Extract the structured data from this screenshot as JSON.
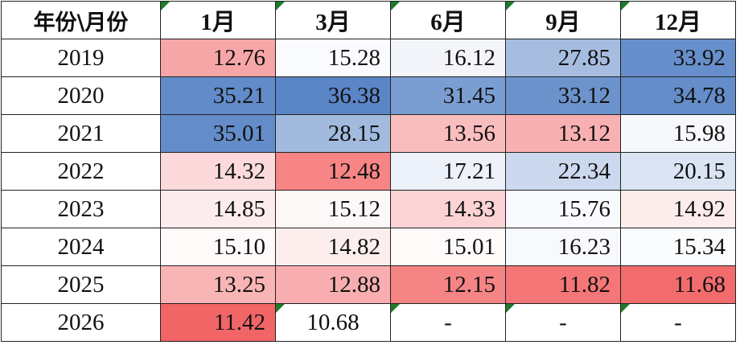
{
  "table": {
    "corner_label": "年份\\月份",
    "columns": [
      "1月",
      "3月",
      "6月",
      "9月",
      "12月"
    ],
    "rows": [
      {
        "year": "2019",
        "cells": [
          {
            "text": "12.76",
            "bg": "#f7a6a8"
          },
          {
            "text": "15.28",
            "bg": "#fafbfe"
          },
          {
            "text": "16.12",
            "bg": "#f3f5fb"
          },
          {
            "text": "27.85",
            "bg": "#a6bde0"
          },
          {
            "text": "33.92",
            "bg": "#678fcb"
          }
        ]
      },
      {
        "year": "2020",
        "cells": [
          {
            "text": "35.21",
            "bg": "#628bc9"
          },
          {
            "text": "36.38",
            "bg": "#5a85c6"
          },
          {
            "text": "31.45",
            "bg": "#7b9ed2"
          },
          {
            "text": "33.12",
            "bg": "#6d93cd"
          },
          {
            "text": "34.78",
            "bg": "#648dca"
          }
        ]
      },
      {
        "year": "2021",
        "cells": [
          {
            "text": "35.01",
            "bg": "#638cc9"
          },
          {
            "text": "28.15",
            "bg": "#a2bade"
          },
          {
            "text": "13.56",
            "bg": "#fabdbe"
          },
          {
            "text": "13.12",
            "bg": "#f9b0b2"
          },
          {
            "text": "15.98",
            "bg": "#f6f8fc"
          }
        ]
      },
      {
        "year": "2022",
        "cells": [
          {
            "text": "14.32",
            "bg": "#fcdadb"
          },
          {
            "text": "12.48",
            "bg": "#f78585"
          },
          {
            "text": "17.21",
            "bg": "#edf1f9"
          },
          {
            "text": "22.34",
            "bg": "#cbd8ee"
          },
          {
            "text": "20.15",
            "bg": "#dae4f3"
          }
        ]
      },
      {
        "year": "2023",
        "cells": [
          {
            "text": "14.85",
            "bg": "#fdeced"
          },
          {
            "text": "15.12",
            "bg": "#fdf8f8"
          },
          {
            "text": "14.33",
            "bg": "#fbd3d4"
          },
          {
            "text": "15.76",
            "bg": "#f9fafd"
          },
          {
            "text": "14.92",
            "bg": "#fdecec"
          }
        ]
      },
      {
        "year": "2024",
        "cells": [
          {
            "text": "15.10",
            "bg": "#fefafa"
          },
          {
            "text": "14.82",
            "bg": "#fdeeee"
          },
          {
            "text": "15.01",
            "bg": "#fefafa"
          },
          {
            "text": "16.23",
            "bg": "#f8f9fd"
          },
          {
            "text": "15.34",
            "bg": "#fbfcfe"
          }
        ]
      },
      {
        "year": "2025",
        "cells": [
          {
            "text": "13.25",
            "bg": "#f9b5b6"
          },
          {
            "text": "12.88",
            "bg": "#f8aeb0"
          },
          {
            "text": "12.15",
            "bg": "#f58485"
          },
          {
            "text": "11.82",
            "bg": "#f47677"
          },
          {
            "text": "11.68",
            "bg": "#f36c6d"
          }
        ]
      },
      {
        "year": "2026",
        "cells": [
          {
            "text": "11.42",
            "bg": "#f26566"
          },
          {
            "text": "10.68",
            "bg": "#ffffff"
          },
          {
            "text": "-",
            "bg": "#ffffff"
          },
          {
            "text": "-",
            "bg": "#ffffff"
          },
          {
            "text": "-",
            "bg": "#ffffff"
          }
        ]
      }
    ]
  },
  "flag_color": "#1f7a2a"
}
